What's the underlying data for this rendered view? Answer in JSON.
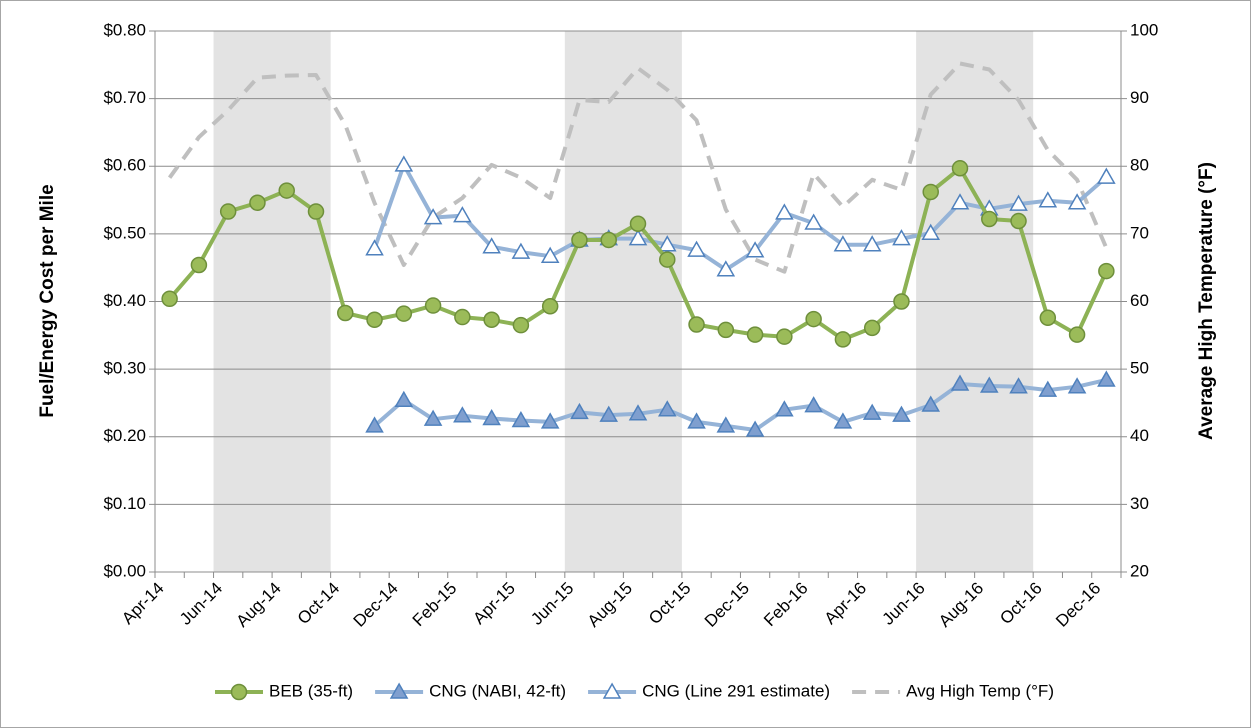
{
  "chart_data": {
    "type": "line",
    "y_label": "Fuel/Energy Cost per Mile",
    "y2_label": "Average High Temperature (°F)",
    "categories": [
      "Apr-14",
      null,
      "Jun-14",
      null,
      "Aug-14",
      null,
      "Oct-14",
      null,
      "Dec-14",
      null,
      "Feb-15",
      null,
      "Apr-15",
      null,
      "Jun-15",
      null,
      "Aug-15",
      null,
      "Oct-15",
      null,
      "Dec-15",
      null,
      "Feb-16",
      null,
      "Apr-16",
      null,
      "Jun-16",
      null,
      "Aug-16",
      null,
      "Oct-16",
      null,
      "Dec-16"
    ],
    "ylim": [
      0,
      0.8
    ],
    "yticks": [
      {
        "value": 0,
        "label": "$0.00"
      },
      {
        "value": 0.1,
        "label": "$0.10"
      },
      {
        "value": 0.2,
        "label": "$0.20"
      },
      {
        "value": 0.3,
        "label": "$0.30"
      },
      {
        "value": 0.4,
        "label": "$0.40"
      },
      {
        "value": 0.5,
        "label": "$0.50"
      },
      {
        "value": 0.6,
        "label": "$0.60"
      },
      {
        "value": 0.7,
        "label": "$0.70"
      },
      {
        "value": 0.8,
        "label": "$0.80"
      }
    ],
    "y2lim": [
      20,
      100
    ],
    "y2ticks": [
      20,
      30,
      40,
      50,
      60,
      70,
      80,
      90,
      100
    ],
    "grid": true,
    "legend": "bottom",
    "series": [
      {
        "name": "BEB (35-ft)",
        "color": "#8db255",
        "marker": "circle",
        "marker_fill": "#9bbb59",
        "marker_stroke": "#6e8f3b",
        "values": [
          0.404,
          0.454,
          0.533,
          0.546,
          0.564,
          0.533,
          0.383,
          0.373,
          0.382,
          0.394,
          0.377,
          0.373,
          0.365,
          0.393,
          0.491,
          0.491,
          0.515,
          0.462,
          0.366,
          0.358,
          0.351,
          0.348,
          0.374,
          0.344,
          0.361,
          0.4,
          0.562,
          0.597,
          0.522,
          0.519,
          0.376,
          0.351,
          0.445
        ]
      },
      {
        "name": "CNG (NABI, 42-ft)",
        "color": "#95b3d7",
        "marker": "triangle",
        "marker_fill": "#7f9fcf",
        "marker_stroke": "#4f81bd",
        "values": [
          null,
          null,
          null,
          null,
          null,
          null,
          null,
          0.216,
          0.254,
          0.226,
          0.231,
          0.227,
          0.224,
          0.222,
          0.236,
          0.232,
          0.234,
          0.24,
          0.222,
          0.216,
          0.21,
          0.24,
          0.246,
          0.222,
          0.235,
          0.232,
          0.247,
          0.278,
          0.275,
          0.274,
          0.269,
          0.274,
          0.284
        ]
      },
      {
        "name": "CNG (Line 291 estimate)",
        "color": "#95b3d7",
        "marker": "triangle",
        "marker_fill": "#ffffff",
        "marker_stroke": "#4f81bd",
        "values": [
          null,
          null,
          null,
          null,
          null,
          null,
          null,
          0.478,
          0.602,
          0.524,
          0.527,
          0.481,
          0.473,
          0.467,
          0.491,
          0.493,
          0.493,
          0.484,
          0.476,
          0.447,
          0.475,
          0.531,
          0.516,
          0.484,
          0.484,
          0.493,
          0.501,
          0.546,
          0.537,
          0.544,
          0.549,
          0.546,
          0.584
        ]
      },
      {
        "name": "Avg High Temp (°F)",
        "color": "#bfbfbf",
        "dash": true,
        "axis": "y2",
        "values": [
          78.3,
          84.3,
          88.3,
          93.1,
          93.4,
          93.5,
          86.1,
          74.6,
          65.4,
          72.4,
          75.3,
          80.2,
          78.3,
          75.3,
          89.8,
          89.5,
          94.5,
          91.3,
          86.8,
          73.6,
          66.2,
          64.4,
          78.9,
          74.0,
          78.0,
          76.5,
          90.6,
          95.2,
          94.3,
          89.8,
          82.4,
          78.0,
          67.9
        ]
      }
    ]
  }
}
